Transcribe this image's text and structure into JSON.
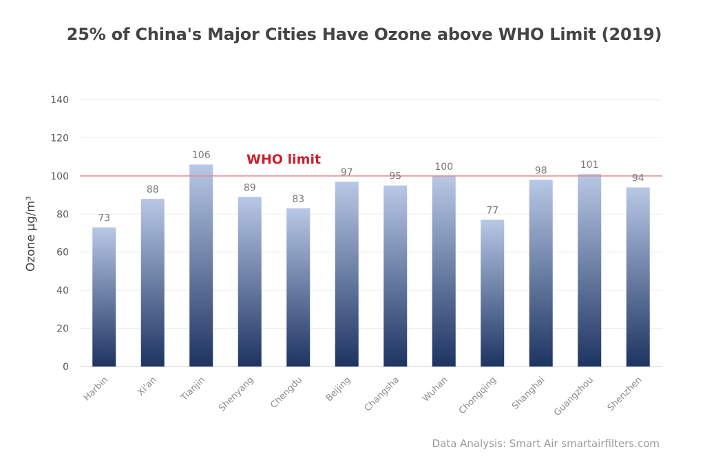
{
  "chart_data": {
    "type": "bar",
    "title": "25% of China's Major Cities Have Ozone above WHO Limit (2019)",
    "xlabel": "",
    "ylabel": "Ozone µg/m³",
    "ylim": [
      0,
      140
    ],
    "yticks": [
      0,
      20,
      40,
      60,
      80,
      100,
      120,
      140
    ],
    "categories": [
      "Harbin",
      "Xi'an",
      "Tianjin",
      "Shenyang",
      "Chengdu",
      "Beijing",
      "Changsha",
      "Wuhan",
      "Chongqing",
      "Shanghai",
      "Guangzhou",
      "Shenzhen"
    ],
    "values": [
      73,
      88,
      106,
      89,
      83,
      97,
      95,
      100,
      77,
      98,
      101,
      94
    ],
    "grid": true,
    "legend": "none",
    "reference_line": {
      "value": 100,
      "label": "WHO limit",
      "color": "#e8868c",
      "label_color": "#cc1f2b"
    },
    "bar_gradient": {
      "top": "#b8c8e6",
      "bottom": "#1d3461"
    },
    "source_note": "Data Analysis: Smart Air smartairfilters.com"
  }
}
